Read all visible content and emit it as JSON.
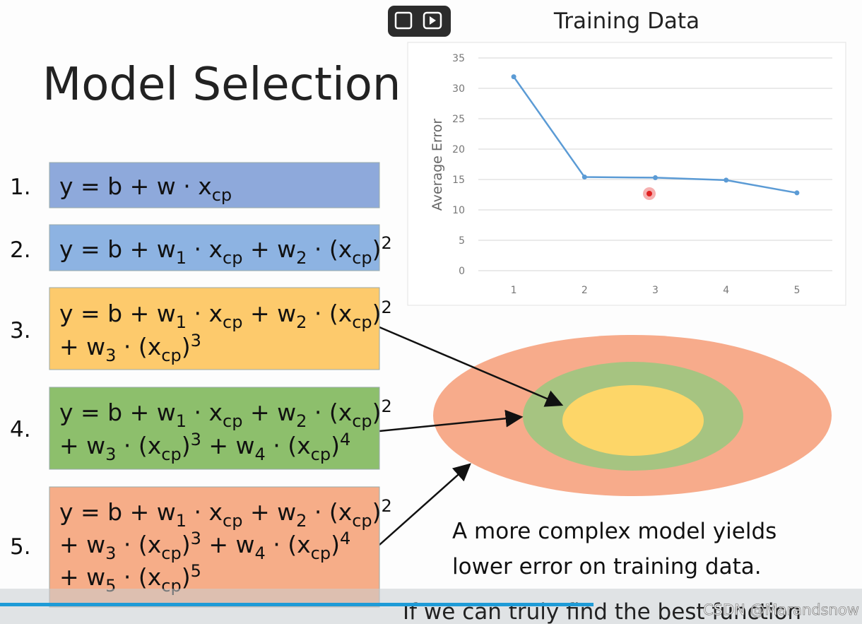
{
  "slide": {
    "title": "Model Selection",
    "formulas": [
      {
        "number": "1.",
        "lines": [
          [
            "y = b + w · x",
            {
              "sub": "cp"
            }
          ]
        ]
      },
      {
        "number": "2.",
        "lines": [
          [
            "y = b + w",
            {
              "sub": "1"
            },
            " · x",
            {
              "sub": "cp"
            },
            " + w",
            {
              "sub": "2"
            },
            " · (x",
            {
              "sub": "cp"
            },
            ")",
            {
              "sup": "2"
            }
          ]
        ]
      },
      {
        "number": "3.",
        "lines": [
          [
            "y = b + w",
            {
              "sub": "1"
            },
            " · x",
            {
              "sub": "cp"
            },
            " + w",
            {
              "sub": "2"
            },
            " · (x",
            {
              "sub": "cp"
            },
            ")",
            {
              "sup": "2"
            }
          ],
          [
            "+ w",
            {
              "sub": "3"
            },
            " · (x",
            {
              "sub": "cp"
            },
            ")",
            {
              "sup": "3"
            }
          ]
        ]
      },
      {
        "number": "4.",
        "lines": [
          [
            "y = b + w",
            {
              "sub": "1"
            },
            " · x",
            {
              "sub": "cp"
            },
            " + w",
            {
              "sub": "2"
            },
            " · (x",
            {
              "sub": "cp"
            },
            ")",
            {
              "sup": "2"
            }
          ],
          [
            "+ w",
            {
              "sub": "3"
            },
            " · (x",
            {
              "sub": "cp"
            },
            ")",
            {
              "sup": "3"
            },
            " + w",
            {
              "sub": "4"
            },
            " · (x",
            {
              "sub": "cp"
            },
            ")",
            {
              "sup": "4"
            }
          ]
        ]
      },
      {
        "number": "5.",
        "lines": [
          [
            "y = b + w",
            {
              "sub": "1"
            },
            " · x",
            {
              "sub": "cp"
            },
            " + w",
            {
              "sub": "2"
            },
            " · (x",
            {
              "sub": "cp"
            },
            ")",
            {
              "sup": "2"
            }
          ],
          [
            "+ w",
            {
              "sub": "3"
            },
            " · (x",
            {
              "sub": "cp"
            },
            ")",
            {
              "sup": "3"
            },
            " + w",
            {
              "sub": "4"
            },
            " · (x",
            {
              "sub": "cp"
            },
            ")",
            {
              "sup": "4"
            }
          ],
          [
            "+ w",
            {
              "sub": "5"
            },
            " · (x",
            {
              "sub": "cp"
            },
            ")",
            {
              "sup": "5"
            }
          ]
        ]
      }
    ],
    "caption": [
      "A more complex model yields",
      "lower error on training data."
    ],
    "footer": "If we can truly find the best function"
  },
  "chart_data": {
    "type": "line",
    "title": "Training Data",
    "y_label": "Average Error",
    "categories": [
      "1",
      "2",
      "3",
      "4",
      "5"
    ],
    "values": [
      31.9,
      15.4,
      15.3,
      14.9,
      12.8
    ],
    "color": "#5b9bd5",
    "ylim": [
      0,
      35
    ],
    "yticks": [
      0,
      5,
      10,
      15,
      20,
      25,
      30,
      35
    ],
    "grid": true
  },
  "watermark": "CSDN @Marandsnow"
}
